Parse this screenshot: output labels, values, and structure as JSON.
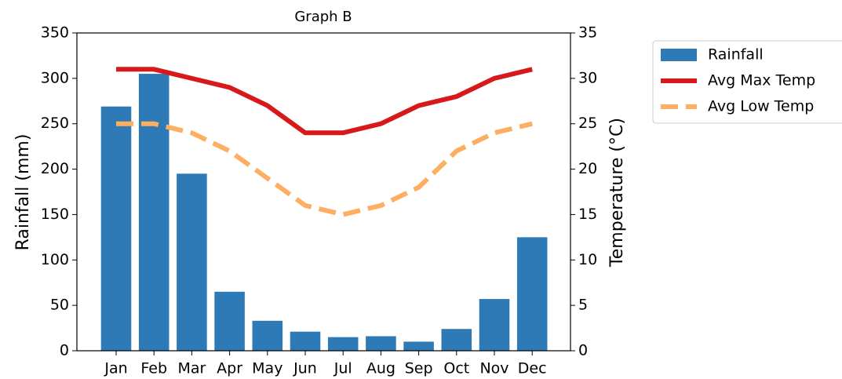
{
  "chart_data": {
    "type": "bar",
    "title": "Graph B",
    "categories": [
      "Jan",
      "Feb",
      "Mar",
      "Apr",
      "May",
      "Jun",
      "Jul",
      "Aug",
      "Sep",
      "Oct",
      "Nov",
      "Dec"
    ],
    "ylabel": "Rainfall (mm)",
    "y2label": "Temperature (°C)",
    "ylim": [
      0,
      350
    ],
    "yticks": [
      0,
      50,
      100,
      150,
      200,
      250,
      300,
      350
    ],
    "y2lim": [
      0,
      35
    ],
    "y2ticks": [
      0,
      5,
      10,
      15,
      20,
      25,
      30,
      35
    ],
    "legend": "outside-right",
    "series": [
      {
        "name": "Rainfall",
        "type": "bar",
        "color": "#2e7ab6",
        "values": [
          269,
          305,
          195,
          65,
          33,
          21,
          15,
          16,
          10,
          24,
          57,
          125
        ]
      },
      {
        "name": "Avg Max Temp",
        "type": "line",
        "axis": "y2",
        "color": "#d7191c",
        "linestyle": "solid",
        "values": [
          31,
          31,
          30,
          29,
          27,
          24,
          24,
          25,
          27,
          28,
          30,
          31
        ]
      },
      {
        "name": "Avg Low Temp",
        "type": "line",
        "axis": "y2",
        "color": "#fdae61",
        "linestyle": "dashed",
        "values": [
          25,
          25,
          24,
          22,
          19,
          16,
          15,
          16,
          18,
          22,
          24,
          25
        ]
      }
    ]
  }
}
